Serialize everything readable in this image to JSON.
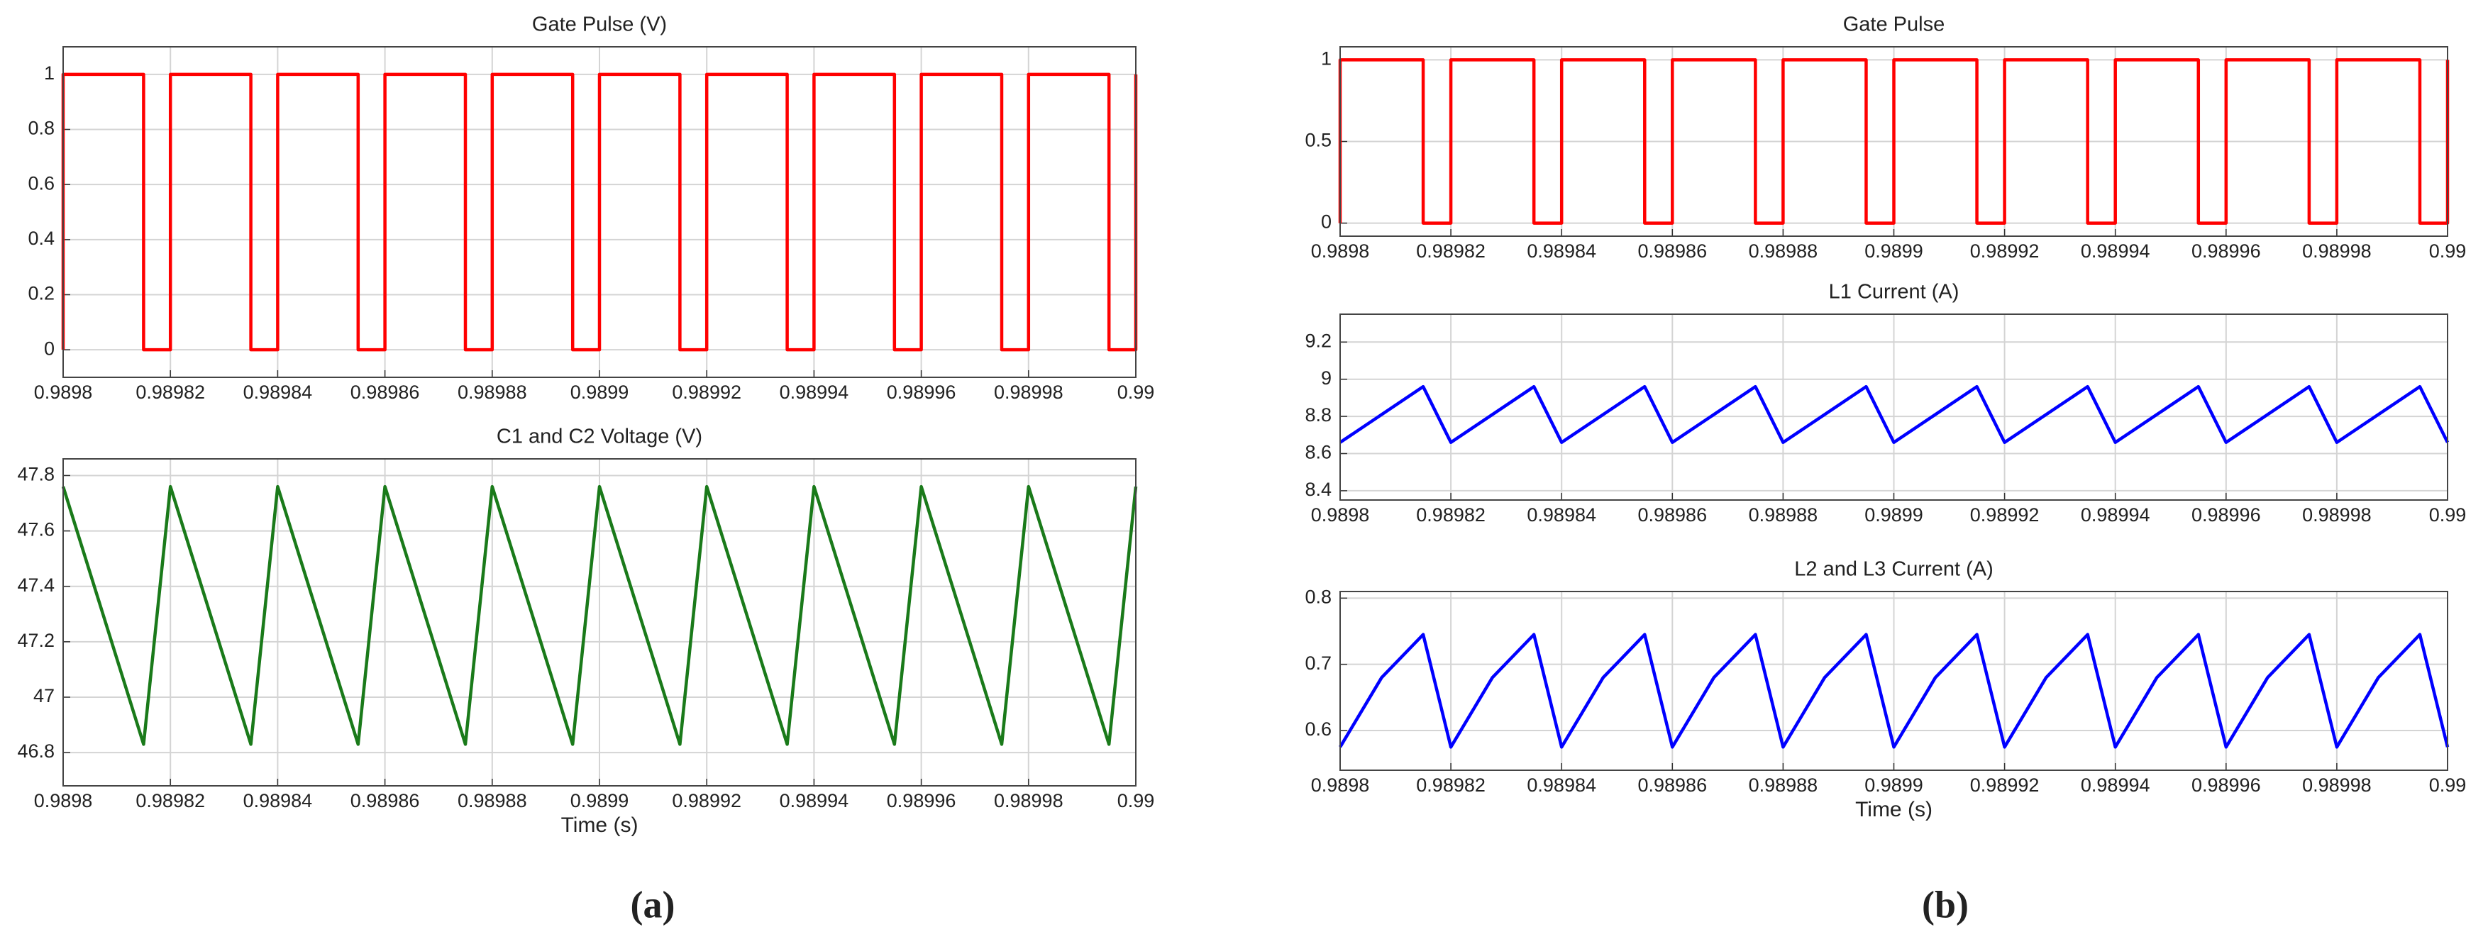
{
  "panel_labels": [
    "(a)",
    "(b)"
  ],
  "chart_data": [
    {
      "type": "line",
      "title": "Gate Pulse (V)",
      "x": [
        0.9898,
        0.9898,
        0.989815,
        0.989815,
        0.98982,
        0.98982,
        0.989835,
        0.989835,
        0.98984,
        0.98984,
        0.989855,
        0.989855,
        0.98986,
        0.98986,
        0.989875,
        0.989875,
        0.98988,
        0.98988,
        0.989895,
        0.989895,
        0.9899,
        0.9899,
        0.989915,
        0.989915,
        0.98992,
        0.98992,
        0.989935,
        0.989935,
        0.98994,
        0.98994,
        0.989955,
        0.989955,
        0.98996,
        0.98996,
        0.989975,
        0.989975,
        0.98998,
        0.98998,
        0.989995,
        0.989995,
        0.99,
        0.99
      ],
      "series": [
        {
          "color": "#ff0000",
          "values": [
            0,
            1,
            1,
            0,
            0,
            1,
            1,
            0,
            0,
            1,
            1,
            0,
            0,
            1,
            1,
            0,
            0,
            1,
            1,
            0,
            0,
            1,
            1,
            0,
            0,
            1,
            1,
            0,
            0,
            1,
            1,
            0,
            0,
            1,
            1,
            0,
            0,
            1,
            1,
            0,
            0,
            1
          ]
        }
      ],
      "xlim": [
        0.9898,
        0.99
      ],
      "xticks": [
        0.9898,
        0.98982,
        0.98984,
        0.98986,
        0.98988,
        0.9899,
        0.98992,
        0.98994,
        0.98996,
        0.98998,
        0.99
      ],
      "ylim": [
        -0.1,
        1.1
      ],
      "yticks": [
        0,
        0.2,
        0.4,
        0.6,
        0.8,
        1
      ],
      "grid": true
    },
    {
      "type": "line",
      "title": "C1 and C2 Voltage (V)",
      "xlabel": "Time (s)",
      "x": [
        0.9898,
        0.989815,
        0.98982,
        0.989835,
        0.98984,
        0.989855,
        0.98986,
        0.989875,
        0.98988,
        0.989895,
        0.9899,
        0.989915,
        0.98992,
        0.989935,
        0.98994,
        0.989955,
        0.98996,
        0.989975,
        0.98998,
        0.989995,
        0.99
      ],
      "series": [
        {
          "color": "#1a7a1a",
          "values": [
            47.76,
            46.83,
            47.76,
            46.83,
            47.76,
            46.83,
            47.76,
            46.83,
            47.76,
            46.83,
            47.76,
            46.83,
            47.76,
            46.83,
            47.76,
            46.83,
            47.76,
            46.83,
            47.76,
            46.83,
            47.76
          ]
        }
      ],
      "xlim": [
        0.9898,
        0.99
      ],
      "xticks": [
        0.9898,
        0.98982,
        0.98984,
        0.98986,
        0.98988,
        0.9899,
        0.98992,
        0.98994,
        0.98996,
        0.98998,
        0.99
      ],
      "ylim": [
        46.68,
        47.86
      ],
      "yticks": [
        46.8,
        47,
        47.2,
        47.4,
        47.6,
        47.8
      ],
      "grid": true
    },
    {
      "type": "line",
      "title": "Gate Pulse",
      "x": [
        0.9898,
        0.9898,
        0.989815,
        0.989815,
        0.98982,
        0.98982,
        0.989835,
        0.989835,
        0.98984,
        0.98984,
        0.989855,
        0.989855,
        0.98986,
        0.98986,
        0.989875,
        0.989875,
        0.98988,
        0.98988,
        0.989895,
        0.989895,
        0.9899,
        0.9899,
        0.989915,
        0.989915,
        0.98992,
        0.98992,
        0.989935,
        0.989935,
        0.98994,
        0.98994,
        0.989955,
        0.989955,
        0.98996,
        0.98996,
        0.989975,
        0.989975,
        0.98998,
        0.98998,
        0.989995,
        0.989995,
        0.99,
        0.99
      ],
      "series": [
        {
          "color": "#ff0000",
          "values": [
            0,
            1,
            1,
            0,
            0,
            1,
            1,
            0,
            0,
            1,
            1,
            0,
            0,
            1,
            1,
            0,
            0,
            1,
            1,
            0,
            0,
            1,
            1,
            0,
            0,
            1,
            1,
            0,
            0,
            1,
            1,
            0,
            0,
            1,
            1,
            0,
            0,
            1,
            1,
            0,
            0,
            1
          ]
        }
      ],
      "xlim": [
        0.9898,
        0.99
      ],
      "xticks": [
        0.9898,
        0.98982,
        0.98984,
        0.98986,
        0.98988,
        0.9899,
        0.98992,
        0.98994,
        0.98996,
        0.98998,
        0.99
      ],
      "ylim": [
        -0.08,
        1.08
      ],
      "yticks": [
        0,
        0.5,
        1
      ],
      "grid": true
    },
    {
      "type": "line",
      "title": "L1 Current (A)",
      "x": [
        0.9898,
        0.989815,
        0.98982,
        0.989835,
        0.98984,
        0.989855,
        0.98986,
        0.989875,
        0.98988,
        0.989895,
        0.9899,
        0.989915,
        0.98992,
        0.989935,
        0.98994,
        0.989955,
        0.98996,
        0.989975,
        0.98998,
        0.989995,
        0.99
      ],
      "series": [
        {
          "color": "#0000ff",
          "values": [
            8.66,
            8.96,
            8.66,
            8.96,
            8.66,
            8.96,
            8.66,
            8.96,
            8.66,
            8.96,
            8.66,
            8.96,
            8.66,
            8.96,
            8.66,
            8.96,
            8.66,
            8.96,
            8.66,
            8.96,
            8.66
          ]
        }
      ],
      "xlim": [
        0.9898,
        0.99
      ],
      "xticks": [
        0.9898,
        0.98982,
        0.98984,
        0.98986,
        0.98988,
        0.9899,
        0.98992,
        0.98994,
        0.98996,
        0.98998,
        0.99
      ],
      "ylim": [
        8.35,
        9.35
      ],
      "yticks": [
        8.4,
        8.6,
        8.8,
        9,
        9.2
      ],
      "grid": true
    },
    {
      "type": "line",
      "title": "L2 and L3 Current (A)",
      "xlabel": "Time (s)",
      "x": [
        0.9898,
        0.9898075,
        0.989815,
        0.98982,
        0.9898275,
        0.989835,
        0.98984,
        0.9898475,
        0.989855,
        0.98986,
        0.9898675,
        0.989875,
        0.98988,
        0.9898875,
        0.989895,
        0.9899,
        0.9899075,
        0.989915,
        0.98992,
        0.9899275,
        0.989935,
        0.98994,
        0.9899475,
        0.989955,
        0.98996,
        0.9899675,
        0.989975,
        0.98998,
        0.9899875,
        0.989995,
        0.99
      ],
      "series": [
        {
          "color": "#0000ff",
          "values": [
            0.575,
            0.68,
            0.745,
            0.575,
            0.68,
            0.745,
            0.575,
            0.68,
            0.745,
            0.575,
            0.68,
            0.745,
            0.575,
            0.68,
            0.745,
            0.575,
            0.68,
            0.745,
            0.575,
            0.68,
            0.745,
            0.575,
            0.68,
            0.745,
            0.575,
            0.68,
            0.745,
            0.575,
            0.68,
            0.745,
            0.575
          ]
        }
      ],
      "xlim": [
        0.9898,
        0.99
      ],
      "xticks": [
        0.9898,
        0.98982,
        0.98984,
        0.98986,
        0.98988,
        0.9899,
        0.98992,
        0.98994,
        0.98996,
        0.98998,
        0.99
      ],
      "ylim": [
        0.54,
        0.81
      ],
      "yticks": [
        0.6,
        0.7,
        0.8
      ],
      "grid": true
    }
  ]
}
